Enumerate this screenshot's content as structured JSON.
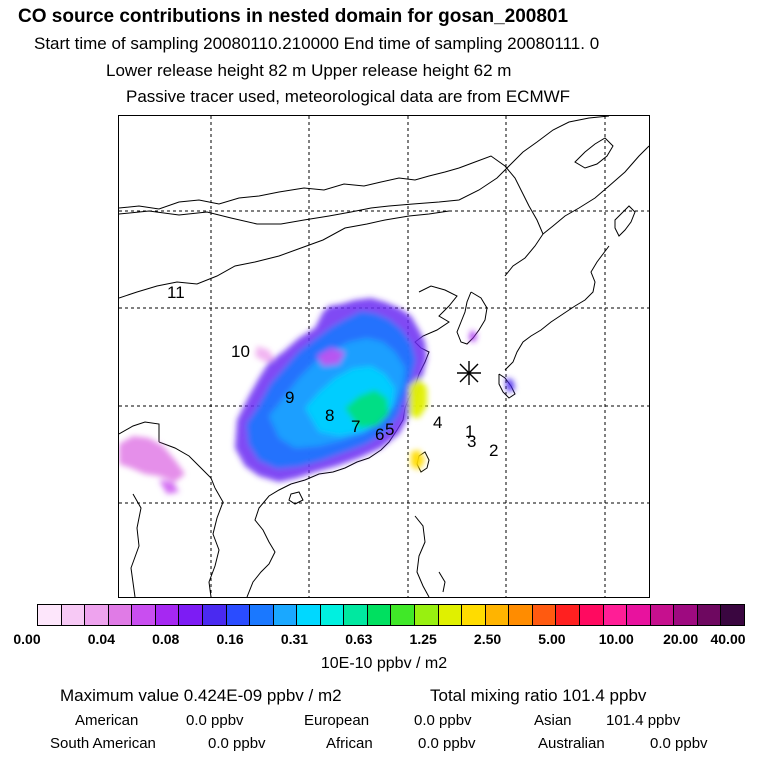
{
  "header": {
    "title": "CO  source contributions in nested domain for gosan_200801",
    "line2": "Start time of sampling 20080110.210000     End time of sampling 20080111.     0",
    "line3": "Lower release height   82 m          Upper release height   62 m",
    "line4": "Passive tracer used, meteorological data are from ECMWF"
  },
  "map": {
    "receptor_marker": "asterisk-receptor",
    "grid_line_style": "dotted",
    "labels": [
      "1",
      "2",
      "3",
      "4",
      "5",
      "6",
      "7",
      "8",
      "9",
      "10",
      "11"
    ]
  },
  "colorbar": {
    "colors": [
      "#fde6fb",
      "#f7c9f5",
      "#eea3ee",
      "#e07be6",
      "#c94ef0",
      "#a628f2",
      "#7d1cf4",
      "#4a2af0",
      "#2a4cff",
      "#1a78ff",
      "#1aa8ff",
      "#00d8ff",
      "#00f0e0",
      "#00e8a0",
      "#00e060",
      "#40e828",
      "#98f010",
      "#e0f000",
      "#ffdc00",
      "#ffb400",
      "#ff8c00",
      "#ff5a10",
      "#ff2020",
      "#ff0a60",
      "#ff1e96",
      "#e8129e",
      "#c6108e",
      "#9e0a80",
      "#6e0860",
      "#3a0640"
    ],
    "tick_labels": [
      "0.00",
      "0.04",
      "0.08",
      "0.16",
      "0.31",
      "0.63",
      "1.25",
      "2.50",
      "5.00",
      "10.00",
      "20.00",
      "40.00"
    ],
    "unit": "10E-10 ppbv / m2"
  },
  "stats": {
    "max_label": "Maximum value  0.424E-09 ppbv / m2",
    "total_label": "Total mixing ratio      101.4 ppbv",
    "regions": [
      {
        "name": "American",
        "value": "0.0 ppbv"
      },
      {
        "name": "European",
        "value": "0.0 ppbv"
      },
      {
        "name": "Asian",
        "value": "101.4 ppbv"
      },
      {
        "name": "South American",
        "value": "0.0 ppbv"
      },
      {
        "name": "African",
        "value": "0.0 ppbv"
      },
      {
        "name": "Australian",
        "value": "0.0 ppbv"
      }
    ]
  }
}
